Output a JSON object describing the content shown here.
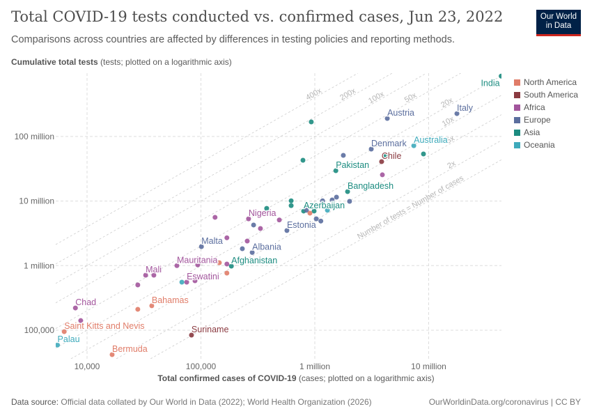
{
  "header": {
    "title": "Total COVID-19 tests conducted vs. confirmed cases, Jun 23, 2022",
    "subtitle": "Comparisons across countries are affected by differences in testing policies and reporting methods.",
    "logo": "Our World in Data"
  },
  "footer": {
    "source_label": "Data source:",
    "source": "Official data collated by Our World in Data (2022); World Health Organization (2026)",
    "url": "OurWorldinData.org/coronavirus | CC BY"
  },
  "colors": {
    "North America": "#e07c68",
    "South America": "#8a3a40",
    "Africa": "#a2559c",
    "Europe": "#5b6e9e",
    "Asia": "#1c8c80",
    "Oceania": "#3eaabb",
    "logo_bg": "#002147",
    "logo_bar": "#ce261e"
  },
  "chart_data": {
    "type": "scatter",
    "title": "Total COVID-19 tests conducted vs. confirmed cases, Jun 23, 2022",
    "ylabel_bold": "Cumulative total tests",
    "ylabel_rest": "(tests; plotted on a logarithmic axis)",
    "xlabel_bold": "Total confirmed cases of COVID-19",
    "xlabel_rest": "(cases; plotted on a logarithmic axis)",
    "xscale": "log",
    "yscale": "log",
    "xlim": [
      5300,
      44000000
    ],
    "ylim": [
      36000,
      950000000
    ],
    "xticks": [
      {
        "v": 10000,
        "label": "10,000"
      },
      {
        "v": 100000,
        "label": "100,000"
      },
      {
        "v": 1000000,
        "label": "1 million"
      },
      {
        "v": 10000000,
        "label": "10 million"
      }
    ],
    "yticks": [
      {
        "v": 100000,
        "label": "100,000"
      },
      {
        "v": 1000000,
        "label": "1 million"
      },
      {
        "v": 10000000,
        "label": "10 million"
      },
      {
        "v": 100000000,
        "label": "100 million"
      }
    ],
    "grid": true,
    "legend_placement": "right",
    "legend": [
      "North America",
      "South America",
      "Africa",
      "Europe",
      "Asia",
      "Oceania"
    ],
    "ratio_lines": [
      {
        "r": 1,
        "label": "Number of tests = Number of cases"
      },
      {
        "r": 2,
        "label": "2x"
      },
      {
        "r": 5,
        "label": "5x"
      },
      {
        "r": 10,
        "label": "10x"
      },
      {
        "r": 20,
        "label": "20x"
      },
      {
        "r": 50,
        "label": "50x"
      },
      {
        "r": 100,
        "label": "100x"
      },
      {
        "r": 200,
        "label": "200x"
      },
      {
        "r": 400,
        "label": "400x"
      }
    ],
    "points": [
      {
        "label": "India",
        "c": "Asia",
        "x": 43300000,
        "y": 860000000
      },
      {
        "label": "Italy",
        "c": "Europe",
        "x": 17700000,
        "y": 226000000
      },
      {
        "label": "Austria",
        "c": "Europe",
        "x": 4330000,
        "y": 190000000
      },
      {
        "label": "Australia",
        "c": "Oceania",
        "x": 7400000,
        "y": 72000000
      },
      {
        "c": "Asia",
        "x": 9000000,
        "y": 53600000
      },
      {
        "label": "Denmark",
        "c": "Europe",
        "x": 3130000,
        "y": 63800000
      },
      {
        "c": "Asia",
        "x": 4150000,
        "y": 49800000
      },
      {
        "label": "Chile",
        "c": "South America",
        "x": 3860000,
        "y": 40800000
      },
      {
        "c": "Africa",
        "x": 3920000,
        "y": 25500000
      },
      {
        "c": "Europe",
        "x": 1780000,
        "y": 51000000
      },
      {
        "label": "Pakistan",
        "c": "Asia",
        "x": 1530000,
        "y": 29500000
      },
      {
        "c": "Asia",
        "x": 787000,
        "y": 42900000
      },
      {
        "c": "Asia",
        "x": 931000,
        "y": 168000000
      },
      {
        "label": "Bangladesh",
        "c": "Asia",
        "x": 1940000,
        "y": 14000000
      },
      {
        "c": "Europe",
        "x": 1550000,
        "y": 11500000
      },
      {
        "c": "Europe",
        "x": 1420000,
        "y": 10400000
      },
      {
        "c": "Europe",
        "x": 2020000,
        "y": 9900000
      },
      {
        "c": "Europe",
        "x": 1170000,
        "y": 10100000
      },
      {
        "c": "Asia",
        "x": 620000,
        "y": 10100000
      },
      {
        "c": "Asia",
        "x": 620000,
        "y": 8500000
      },
      {
        "c": "Asia",
        "x": 378000,
        "y": 7700000
      },
      {
        "label": "Azerbaijan",
        "c": "Asia",
        "x": 798000,
        "y": 7000000
      },
      {
        "c": "Europe",
        "x": 845000,
        "y": 7200000
      },
      {
        "c": "Asia",
        "x": 986000,
        "y": 7000000
      },
      {
        "c": "North America",
        "x": 906000,
        "y": 6500000
      },
      {
        "c": "Oceania",
        "x": 1290000,
        "y": 7200000
      },
      {
        "c": "Europe",
        "x": 1030000,
        "y": 5300000
      },
      {
        "c": "Europe",
        "x": 1130000,
        "y": 4900000
      },
      {
        "label": "Estonia",
        "c": "Europe",
        "x": 569000,
        "y": 3500000
      },
      {
        "c": "Africa",
        "x": 488000,
        "y": 5100000
      },
      {
        "label": "Nigeria",
        "c": "Africa",
        "x": 262000,
        "y": 5300000
      },
      {
        "c": "Europe",
        "x": 290000,
        "y": 4260000
      },
      {
        "c": "Africa",
        "x": 333000,
        "y": 3760000
      },
      {
        "c": "Africa",
        "x": 133000,
        "y": 5600000
      },
      {
        "c": "Africa",
        "x": 169000,
        "y": 2700000
      },
      {
        "c": "Africa",
        "x": 255000,
        "y": 2400000
      },
      {
        "label": "Malta",
        "c": "Europe",
        "x": 101000,
        "y": 1970000
      },
      {
        "c": "Europe",
        "x": 231000,
        "y": 1830000
      },
      {
        "label": "Albania",
        "c": "Europe",
        "x": 282000,
        "y": 1600000
      },
      {
        "c": "Africa",
        "x": 169000,
        "y": 1060000
      },
      {
        "c": "North America",
        "x": 145000,
        "y": 1110000
      },
      {
        "label": "Afghanistan",
        "c": "Asia",
        "x": 185000,
        "y": 982000
      },
      {
        "c": "North America",
        "x": 169000,
        "y": 767000
      },
      {
        "label": "Mauritania",
        "c": "Africa",
        "x": 61500,
        "y": 1000000
      },
      {
        "c": "Africa",
        "x": 93700,
        "y": 1030000
      },
      {
        "label": "Mali",
        "c": "Africa",
        "x": 32700,
        "y": 711000
      },
      {
        "c": "Africa",
        "x": 38600,
        "y": 711000
      },
      {
        "c": "Africa",
        "x": 27900,
        "y": 503000
      },
      {
        "c": "Oceania",
        "x": 68000,
        "y": 555000
      },
      {
        "label": "Eswatini",
        "c": "Africa",
        "x": 75000,
        "y": 555000
      },
      {
        "c": "Africa",
        "x": 88700,
        "y": 583000
      },
      {
        "label": "Chad",
        "c": "Africa",
        "x": 7900,
        "y": 221000
      },
      {
        "c": "Africa",
        "x": 8800,
        "y": 141000
      },
      {
        "label": "Bahamas",
        "c": "North America",
        "x": 37000,
        "y": 239000
      },
      {
        "c": "North America",
        "x": 27900,
        "y": 211000
      },
      {
        "label": "Saint Kitts and Nevis",
        "c": "North America",
        "x": 6300,
        "y": 95000
      },
      {
        "label": "Palau",
        "c": "Oceania",
        "x": 5500,
        "y": 59000
      },
      {
        "label": "Bermuda",
        "c": "North America",
        "x": 16600,
        "y": 41900
      },
      {
        "label": "Suriname",
        "c": "South America",
        "x": 82600,
        "y": 84000
      }
    ]
  }
}
